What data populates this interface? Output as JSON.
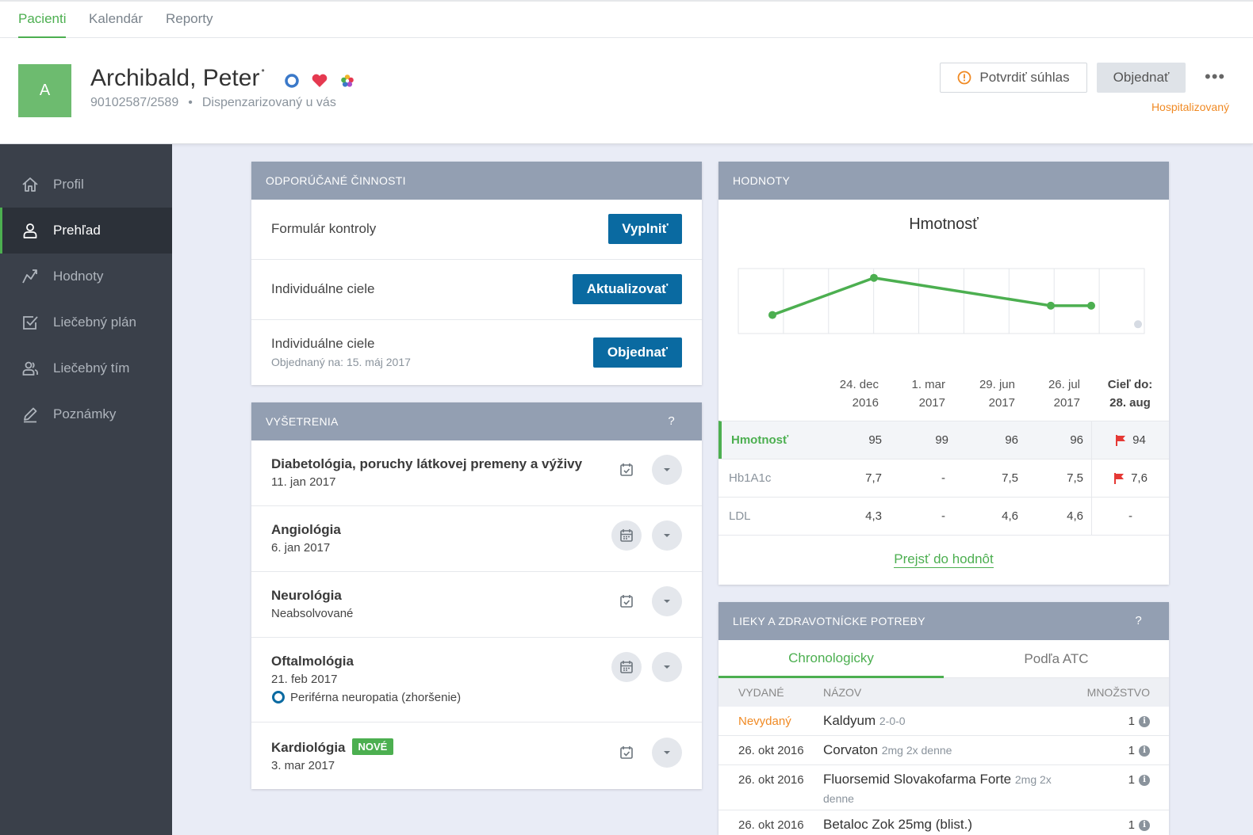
{
  "nav": {
    "tabs": [
      "Pacienti",
      "Kalendár",
      "Reporty"
    ]
  },
  "patient": {
    "initial": "A",
    "name": "Archibald, Peter",
    "marker": "•",
    "id": "90102587/2589",
    "separator": "•",
    "status": "Dispenzarizovaný u vás",
    "confirm_label": "Potvrdiť súhlas",
    "order_label": "Objednať",
    "more": "•••",
    "hospital_status": "Hospitalizovaný"
  },
  "sidebar": {
    "items": [
      {
        "label": "Profil",
        "icon": "home-icon"
      },
      {
        "label": "Prehľad",
        "icon": "person-icon"
      },
      {
        "label": "Hodnoty",
        "icon": "trend-icon"
      },
      {
        "label": "Liečebný plán",
        "icon": "checkbox-icon"
      },
      {
        "label": "Liečebný tím",
        "icon": "team-icon"
      },
      {
        "label": "Poznámky",
        "icon": "pencil-icon"
      }
    ],
    "active_index": 1
  },
  "recommended": {
    "title": "ODPORÚČANÉ ČINNOSTI",
    "rows": [
      {
        "title": "Formulár kontroly",
        "action": "Vyplniť"
      },
      {
        "title": "Individuálne ciele",
        "action": "Aktualizovať"
      },
      {
        "title": "Individuálne ciele",
        "subtitle": "Objednaný na: 15. máj 2017",
        "action": "Objednať"
      }
    ]
  },
  "exams": {
    "title": "VYŠETRENIA",
    "help": "?",
    "rows": [
      {
        "title": "Diabetológia, poruchy látkovej premeny a výživy",
        "date": "11. jan 2017"
      },
      {
        "title": "Angiológia",
        "date": "6. jan 2017"
      },
      {
        "title": "Neurológia",
        "date": "Neabsolvované"
      },
      {
        "title": "Oftalmológia",
        "date": "21. feb 2017",
        "note": "Periférna neuropatia (zhoršenie)"
      },
      {
        "title": "Kardiológia",
        "badge": "NOVÉ",
        "date": "3. mar 2017"
      }
    ]
  },
  "values": {
    "title": "HODNOTY",
    "chart_title": "Hmotnosť",
    "columns": [
      {
        "line1": "24. dec",
        "line2": "2016"
      },
      {
        "line1": "1. mar",
        "line2": "2017"
      },
      {
        "line1": "29. jun",
        "line2": "2017"
      },
      {
        "line1": "26. jul",
        "line2": "2017"
      }
    ],
    "goal_header": {
      "line1": "Cieľ do:",
      "line2": "28. aug"
    },
    "rows": [
      {
        "label": "Hmotnosť",
        "values": [
          "95",
          "99",
          "96",
          "96"
        ],
        "goal": "94",
        "flag": true
      },
      {
        "label": "Hb1A1c",
        "values": [
          "7,7",
          "-",
          "7,5",
          "7,5"
        ],
        "goal": "7,6",
        "flag": true
      },
      {
        "label": "LDL",
        "values": [
          "4,3",
          "-",
          "4,6",
          "4,6"
        ],
        "goal": "-",
        "flag": false
      }
    ],
    "link": "Prejsť do hodnôt"
  },
  "chart_data": {
    "type": "line",
    "title": "Hmotnosť",
    "series": [
      {
        "values": [
          95,
          99,
          96,
          96
        ]
      }
    ],
    "goal": 94,
    "ylim": [
      93,
      100
    ],
    "grid": true,
    "color": "#4caf50"
  },
  "meds": {
    "title": "LIEKY A ZDRAVOTNÍCKE POTREBY",
    "help": "?",
    "tabs": [
      "Chronologicky",
      "Podľa ATC"
    ],
    "columns": [
      "VYDANÉ",
      "NÁZOV",
      "MNOŽSTVO"
    ],
    "rows": [
      {
        "date": "Nevydaný",
        "name": "Kaldyum",
        "detail": "2-0-0",
        "qty": "1",
        "warn": true
      },
      {
        "date": "26. okt 2016",
        "name": "Corvaton",
        "detail": "2mg 2x denne",
        "qty": "1"
      },
      {
        "date": "26. okt 2016",
        "name": "Fluorsemid Slovakofarma Forte",
        "detail": "2mg 2x denne",
        "qty": "1"
      },
      {
        "date": "26. okt 2016",
        "name": "Betaloc Zok 25mg (blist.)",
        "detail": "",
        "qty": "1"
      }
    ],
    "info_icon": "i"
  },
  "colors": {
    "accent": "#4caf50",
    "primary": "#0a6aa1",
    "warning": "#f08a24",
    "flag": "#e53935",
    "sidebar": "#3a404a"
  }
}
